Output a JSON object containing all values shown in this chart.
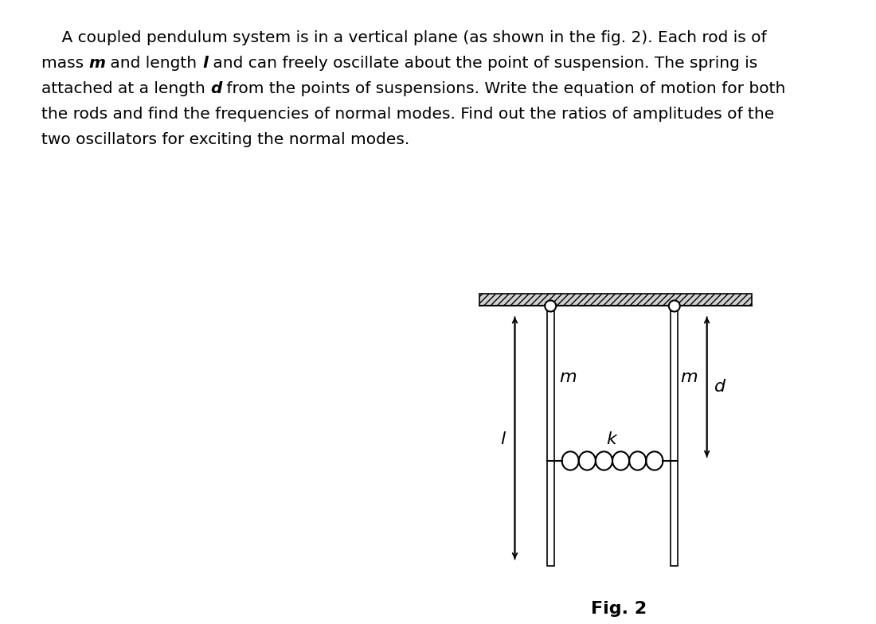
{
  "bg_color": "#ffffff",
  "fig_width": 10.8,
  "fig_height": 7.48,
  "fig_label": "Fig. 2",
  "line1": "    A coupled pendulum system is in a vertical plane (as shown in the fig. 2). Each rod is of",
  "line2_pre": "mass ",
  "line2_m": "m",
  "line2_mid": " and length ",
  "line2_l": "l",
  "line2_post": " and can freely oscillate about the point of suspension. The spring is",
  "line3_pre": "attached at a length ",
  "line3_d": "d",
  "line3_post": " from the points of suspensions. Write the equation of motion for both",
  "line4": "the rods and find the frequencies of normal modes. Find out the ratios of amplitudes of the",
  "line5": "two oscillators for exciting the normal modes.",
  "font_size": 14.5,
  "fig2_fontsize": 16
}
